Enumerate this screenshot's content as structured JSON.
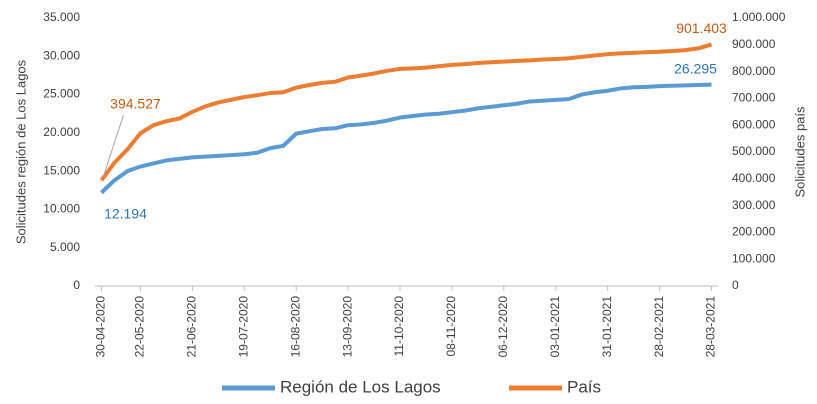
{
  "chart_data": {
    "type": "line",
    "y_label": "Solicitudes región de Los Lagos",
    "y2_label": "Solicitudes país",
    "categories": [
      "30-04-2020",
      null,
      null,
      "22-05-2020",
      null,
      null,
      null,
      "21-06-2020",
      null,
      null,
      null,
      "19-07-2020",
      null,
      null,
      null,
      "16-08-2020",
      null,
      null,
      null,
      "13-09-2020",
      null,
      null,
      null,
      "11-10-2020",
      null,
      null,
      null,
      "08-11-2020",
      null,
      null,
      null,
      "06-12-2020",
      null,
      null,
      null,
      "03-01-2021",
      null,
      null,
      null,
      "31-01-2021",
      null,
      null,
      null,
      "28-02-2021",
      null,
      null,
      null,
      "28-03-2021"
    ],
    "series": [
      {
        "name": "Región de Los Lagos",
        "color": "#5b9bd5",
        "axis": "y",
        "values": [
          12194,
          13800,
          15000,
          15600,
          16000,
          16400,
          16600,
          16800,
          16900,
          17000,
          17100,
          17200,
          17400,
          18000,
          18300,
          19900,
          20200,
          20500,
          20600,
          21000,
          21100,
          21300,
          21600,
          22000,
          22200,
          22400,
          22500,
          22700,
          22900,
          23200,
          23400,
          23600,
          23800,
          24100,
          24200,
          24300,
          24400,
          25000,
          25300,
          25500,
          25800,
          25950,
          26000,
          26100,
          26150,
          26200,
          26250,
          26295
        ],
        "value_labels": [
          "12.194",
          null,
          null,
          null,
          null,
          null,
          null,
          null,
          null,
          null,
          null,
          null,
          null,
          null,
          null,
          null,
          null,
          null,
          null,
          null,
          null,
          null,
          null,
          null,
          null,
          null,
          null,
          null,
          null,
          null,
          null,
          null,
          null,
          null,
          null,
          null,
          null,
          null,
          null,
          null,
          null,
          null,
          null,
          null,
          null,
          null,
          null,
          "26.295"
        ]
      },
      {
        "name": "País",
        "color": "#ed7d31",
        "axis": "y2",
        "values": [
          394527,
          460000,
          510000,
          570000,
          600000,
          615000,
          625000,
          650000,
          670000,
          685000,
          695000,
          705000,
          712000,
          720000,
          723000,
          740000,
          750000,
          758000,
          762000,
          778000,
          785000,
          793000,
          803000,
          810000,
          812000,
          815000,
          820000,
          825000,
          828000,
          832000,
          835000,
          837000,
          840000,
          842000,
          845000,
          847000,
          850000,
          855000,
          860000,
          865000,
          868000,
          870000,
          872000,
          874000,
          877000,
          880000,
          887000,
          901403
        ],
        "value_labels": [
          "394.527",
          null,
          null,
          null,
          null,
          null,
          null,
          null,
          null,
          null,
          null,
          null,
          null,
          null,
          null,
          null,
          null,
          null,
          null,
          null,
          null,
          null,
          null,
          null,
          null,
          null,
          null,
          null,
          null,
          null,
          null,
          null,
          null,
          null,
          null,
          null,
          null,
          null,
          null,
          null,
          null,
          null,
          null,
          null,
          null,
          null,
          null,
          "901.403"
        ]
      }
    ],
    "ylim": [
      0,
      35000
    ],
    "yticks": [
      0,
      {
        "value": 5000,
        "label": "5.000"
      },
      {
        "value": 10000,
        "label": "10.000"
      },
      {
        "value": 15000,
        "label": "15.000"
      },
      {
        "value": 20000,
        "label": "20.000"
      },
      {
        "value": 25000,
        "label": "25.000"
      },
      {
        "value": 30000,
        "label": "30.000"
      },
      {
        "value": 35000,
        "label": "35.000"
      }
    ],
    "y2lim": [
      0,
      1000000
    ],
    "y2ticks": [
      0,
      {
        "value": 100000,
        "label": "100.000"
      },
      {
        "value": 200000,
        "label": "200.000"
      },
      {
        "value": 300000,
        "label": "300.000"
      },
      {
        "value": 400000,
        "label": "400.000"
      },
      {
        "value": 500000,
        "label": "500.000"
      },
      {
        "value": 600000,
        "label": "600.000"
      },
      {
        "value": 700000,
        "label": "700.000"
      },
      {
        "value": 800000,
        "label": "800.000"
      },
      {
        "value": 900000,
        "label": "900.000"
      },
      {
        "value": 1000000,
        "label": "1.000.000"
      }
    ],
    "grid": false,
    "legend": "bottom"
  }
}
